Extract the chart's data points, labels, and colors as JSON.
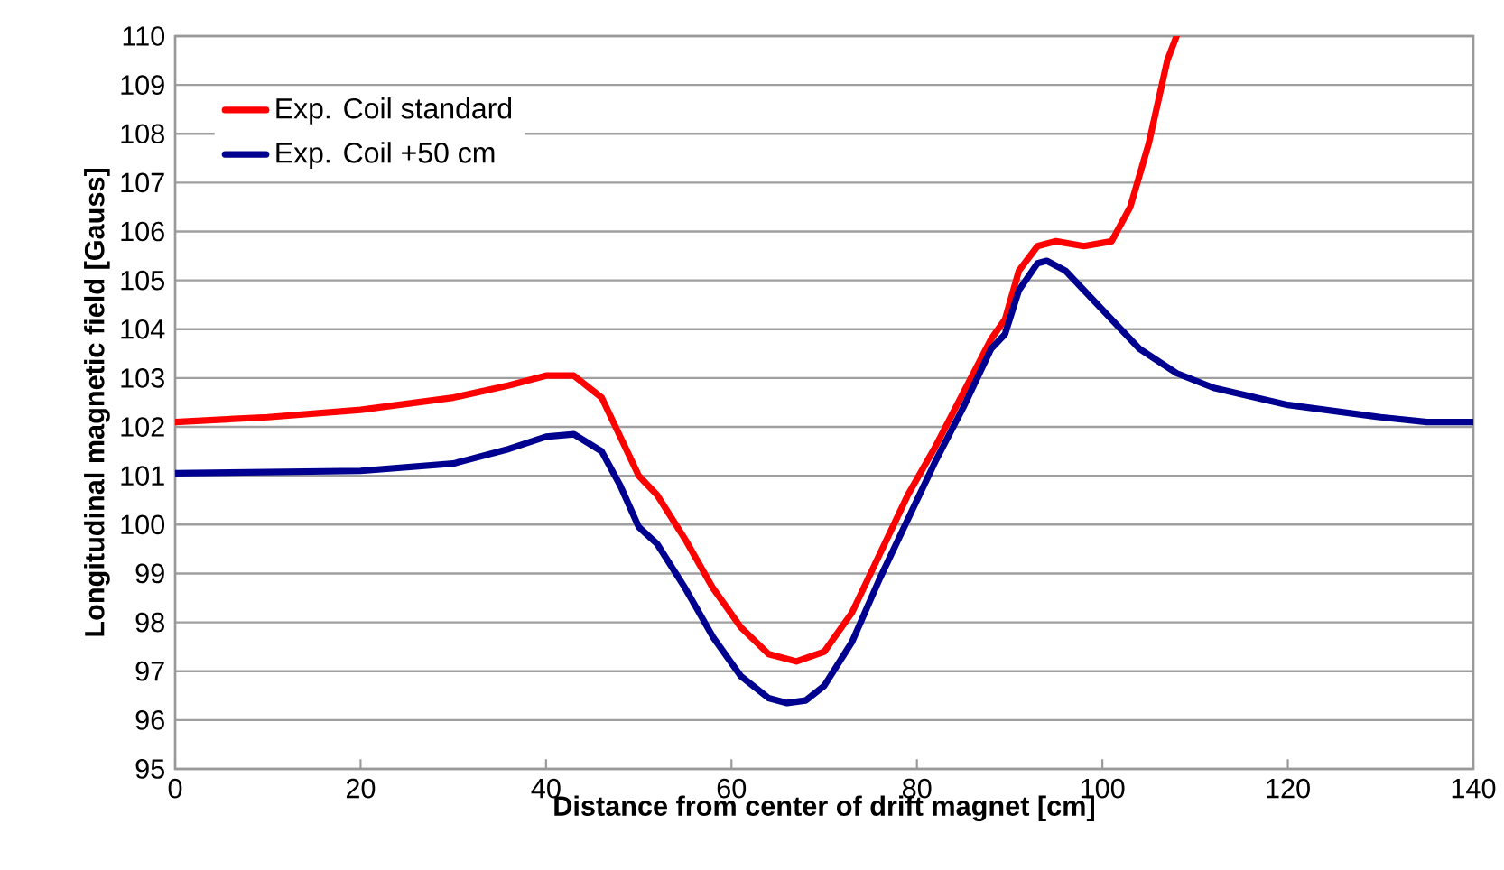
{
  "chart_data": {
    "type": "line",
    "xlabel": "Distance from center of drift magnet [cm]",
    "ylabel": "Longitudinal magnetic field [Gauss]",
    "xlim": [
      0,
      140
    ],
    "ylim": [
      95,
      110
    ],
    "xticks": [
      0,
      20,
      40,
      60,
      80,
      100,
      120,
      140
    ],
    "yticks": [
      95,
      96,
      97,
      98,
      99,
      100,
      101,
      102,
      103,
      104,
      105,
      106,
      107,
      108,
      109,
      110
    ],
    "grid": "y",
    "legend": "top left",
    "marker": "none",
    "line_style": "solid",
    "series": [
      {
        "name": "Exp. Coil standard",
        "color": "#ff0000",
        "x": [
          0,
          10,
          20,
          30,
          36,
          40,
          43,
          46,
          48,
          50,
          52,
          55,
          58,
          61,
          64,
          67,
          70,
          73,
          76,
          79,
          82,
          85,
          88,
          89.5,
          91,
          93,
          95,
          98,
          101,
          103,
          105,
          107,
          108
        ],
        "values": [
          102.1,
          102.2,
          102.35,
          102.6,
          102.85,
          103.05,
          103.05,
          102.6,
          101.8,
          101.0,
          100.6,
          99.7,
          98.7,
          97.9,
          97.35,
          97.2,
          97.4,
          98.2,
          99.4,
          100.6,
          101.6,
          102.7,
          103.8,
          104.2,
          105.2,
          105.7,
          105.8,
          105.7,
          105.8,
          106.5,
          107.8,
          109.5,
          110
        ]
      },
      {
        "name": "Exp. Coil +50 cm",
        "color": "#000090",
        "x": [
          0,
          20,
          30,
          36,
          40,
          43,
          46,
          48,
          50,
          52,
          55,
          58,
          61,
          64,
          66,
          68,
          70,
          73,
          76,
          79,
          82,
          85,
          88,
          89.5,
          91,
          93,
          94,
          96,
          98,
          101,
          104,
          108,
          112,
          120,
          130,
          135,
          140
        ],
        "values": [
          101.05,
          101.1,
          101.25,
          101.55,
          101.8,
          101.85,
          101.5,
          100.8,
          99.95,
          99.6,
          98.7,
          97.7,
          96.9,
          96.45,
          96.35,
          96.4,
          96.7,
          97.6,
          98.9,
          100.1,
          101.3,
          102.4,
          103.6,
          103.9,
          104.8,
          105.35,
          105.4,
          105.2,
          104.8,
          104.2,
          103.6,
          103.1,
          102.8,
          102.45,
          102.2,
          102.1,
          102.1
        ]
      }
    ]
  }
}
